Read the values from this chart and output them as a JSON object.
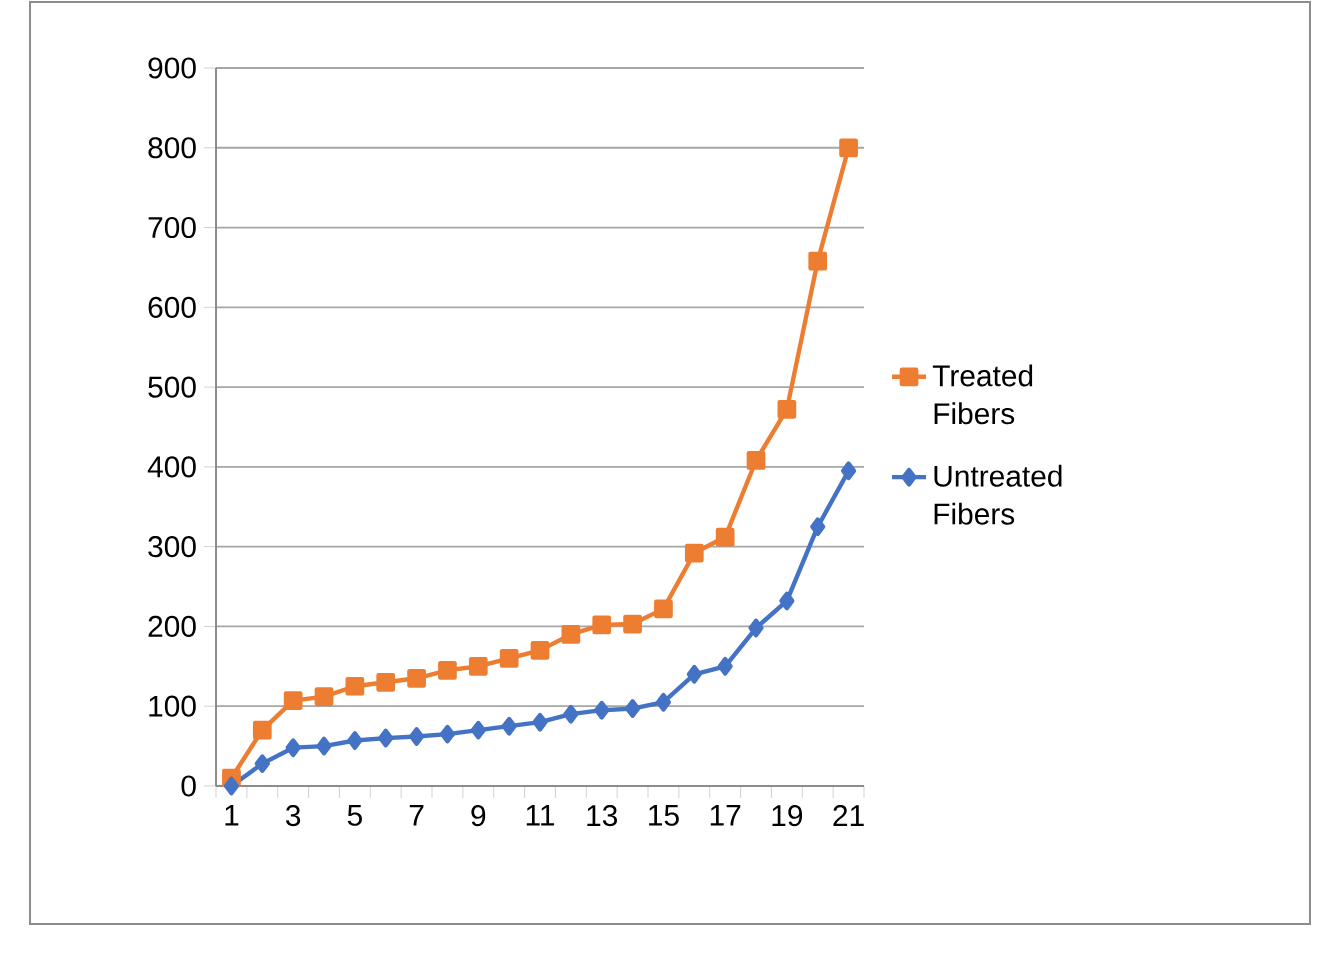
{
  "chart_data": {
    "type": "line",
    "categories": [
      "1",
      null,
      "3",
      null,
      "5",
      null,
      "7",
      null,
      "9",
      null,
      "11",
      null,
      "13",
      null,
      "15",
      null,
      "17",
      null,
      "19",
      null,
      "21"
    ],
    "series": [
      {
        "name": "Treated Fibers",
        "color": "#ed7d31",
        "marker": "square",
        "values": [
          10,
          70,
          107,
          112,
          125,
          130,
          135,
          145,
          150,
          160,
          170,
          190,
          202,
          203,
          222,
          292,
          312,
          408,
          472,
          658,
          800
        ]
      },
      {
        "name": "Untreated Fibers",
        "color": "#4472c4",
        "marker": "diamond",
        "values": [
          0,
          28,
          48,
          50,
          57,
          60,
          62,
          65,
          70,
          75,
          80,
          90,
          95,
          97,
          105,
          140,
          150,
          198,
          232,
          325,
          395
        ]
      }
    ],
    "ylim": [
      0,
      900
    ],
    "yticks": [
      0,
      100,
      200,
      300,
      400,
      500,
      600,
      700,
      800,
      900
    ],
    "grid": "y",
    "legend": "right",
    "line_style": "solid"
  }
}
